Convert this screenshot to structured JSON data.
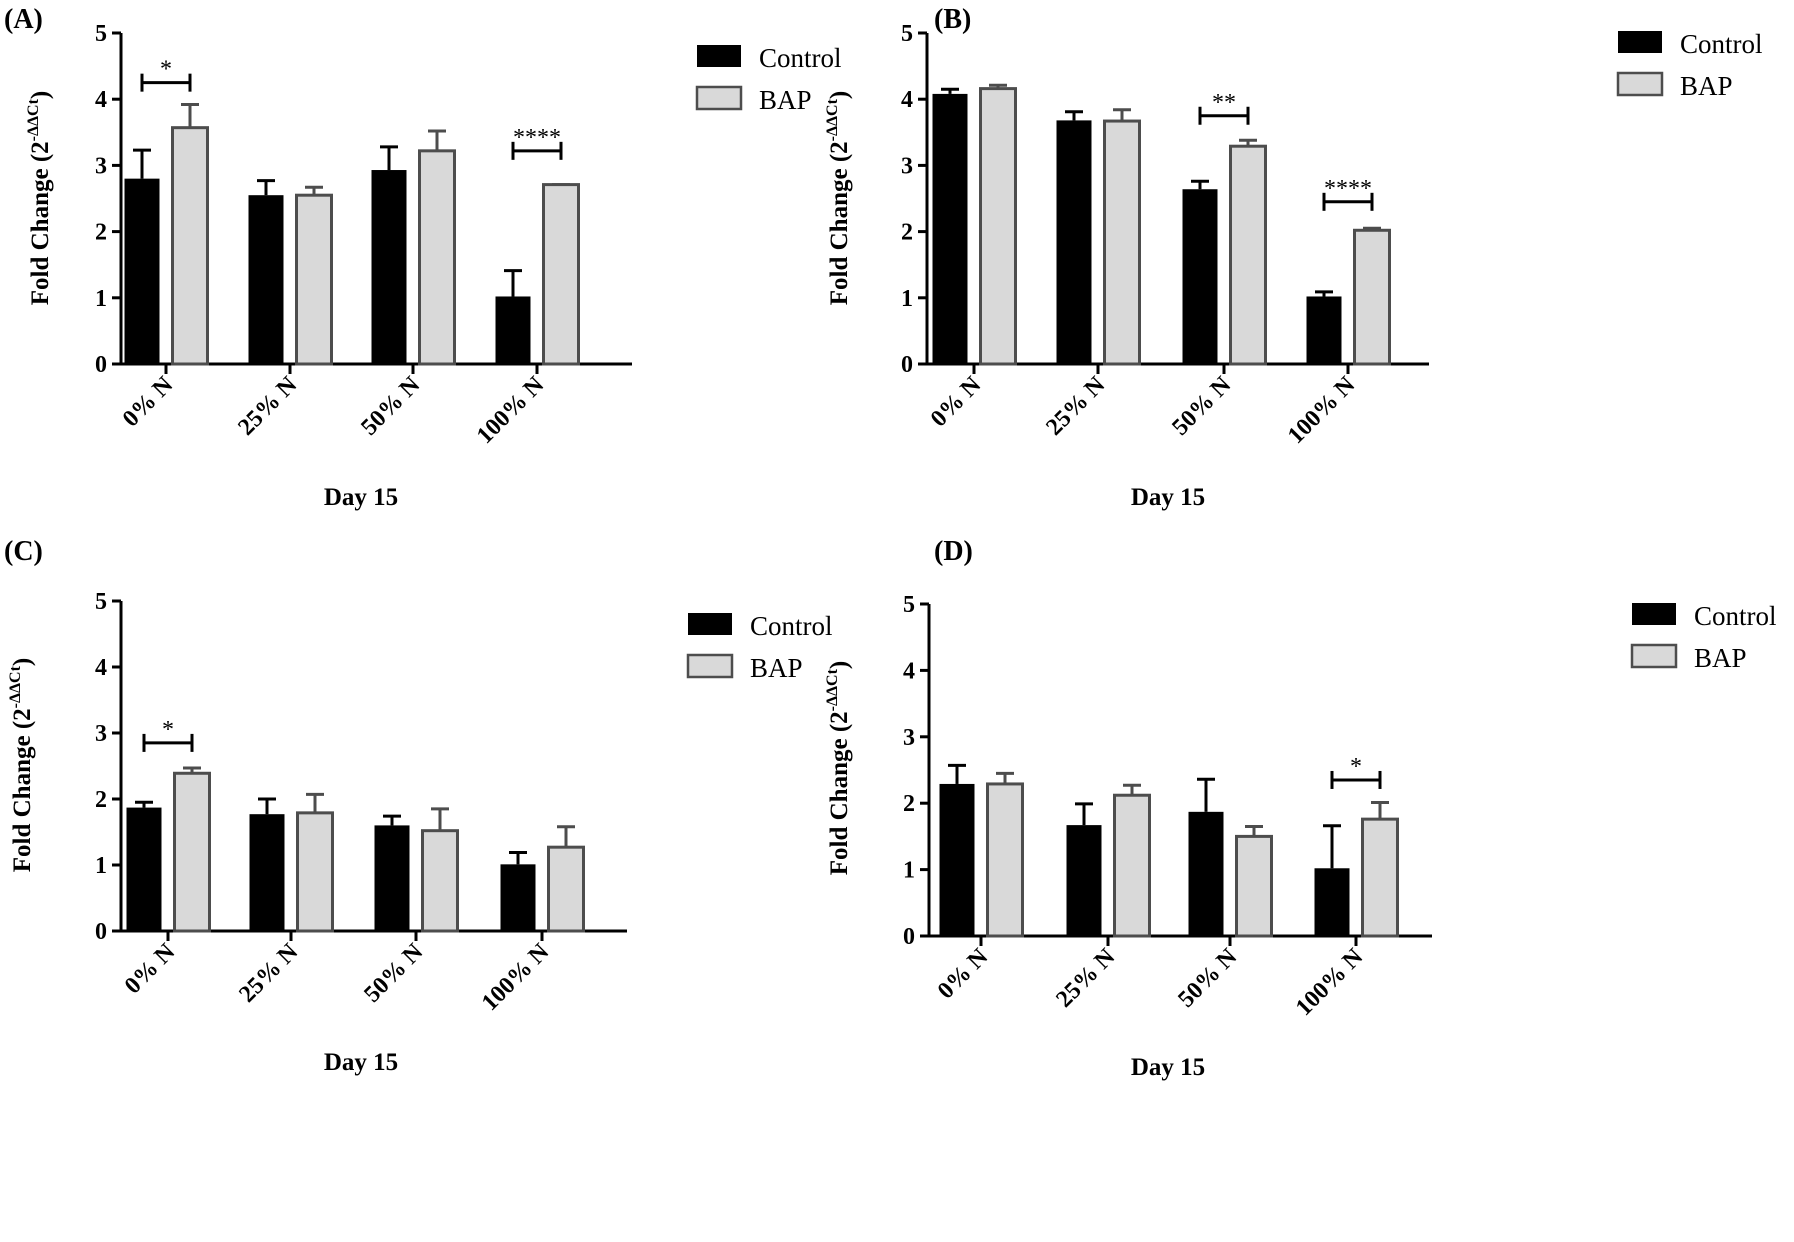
{
  "colors": {
    "control": "#000000",
    "bap": "#d9d9d9",
    "bap_stroke": "#4d4d4d",
    "axis": "#000000"
  },
  "chart_data": [
    {
      "panel_label": "(A)",
      "type": "bar",
      "categories": [
        "0% N",
        "25% N",
        "50% N",
        "100% N"
      ],
      "xlabel": "Day 15",
      "ylabel_main": "Fold Change (2",
      "ylabel_sup": "-ΔΔCt",
      "ylabel_close": ")",
      "ylim": [
        0,
        5
      ],
      "yticks": [
        "0",
        "1",
        "2",
        "3",
        "4",
        "5"
      ],
      "legend": {
        "position": "top-right"
      },
      "series": [
        {
          "name": "Control",
          "values": [
            2.8,
            2.55,
            2.93,
            1.02
          ],
          "errors": [
            0.43,
            0.22,
            0.35,
            0.39
          ]
        },
        {
          "name": "BAP",
          "values": [
            3.57,
            2.55,
            3.22,
            2.71
          ],
          "errors": [
            0.35,
            0.12,
            0.3,
            0.0
          ]
        }
      ],
      "significance": [
        {
          "category": 0,
          "label": "*",
          "y": 4.25
        },
        {
          "category": 3,
          "label": "****",
          "y": 3.22
        }
      ]
    },
    {
      "panel_label": "(B)",
      "type": "bar",
      "categories": [
        "0% N",
        "25% N",
        "50% N",
        "100% N"
      ],
      "xlabel": "Day 15",
      "ylabel_main": "Fold Change (2",
      "ylabel_sup": "-ΔΔCt",
      "ylabel_close": ")",
      "ylim": [
        0,
        5
      ],
      "yticks": [
        "0",
        "1",
        "2",
        "3",
        "4",
        "5"
      ],
      "legend": {
        "position": "top-right"
      },
      "series": [
        {
          "name": "Control",
          "values": [
            4.08,
            3.68,
            2.64,
            1.02
          ],
          "errors": [
            0.07,
            0.13,
            0.12,
            0.07
          ]
        },
        {
          "name": "BAP",
          "values": [
            4.16,
            3.67,
            3.29,
            2.02
          ],
          "errors": [
            0.05,
            0.17,
            0.09,
            0.03
          ]
        }
      ],
      "significance": [
        {
          "category": 2,
          "label": "**",
          "y": 3.75
        },
        {
          "category": 3,
          "label": "****",
          "y": 2.45
        }
      ]
    },
    {
      "panel_label": "(C)",
      "type": "bar",
      "categories": [
        "0% N",
        "25% N",
        "50% N",
        "100% N"
      ],
      "xlabel": "Day 15",
      "ylabel_main": "Fold Change (2",
      "ylabel_sup": "-ΔΔCt",
      "ylabel_close": ")",
      "ylim": [
        0,
        5
      ],
      "yticks": [
        "0",
        "1",
        "2",
        "3",
        "4",
        "5"
      ],
      "legend": {
        "position": "top-right"
      },
      "series": [
        {
          "name": "Control",
          "values": [
            1.87,
            1.77,
            1.6,
            1.01
          ],
          "errors": [
            0.08,
            0.23,
            0.14,
            0.18
          ]
        },
        {
          "name": "BAP",
          "values": [
            2.39,
            1.79,
            1.52,
            1.27
          ],
          "errors": [
            0.08,
            0.28,
            0.33,
            0.31
          ]
        }
      ],
      "significance": [
        {
          "category": 0,
          "label": "*",
          "y": 2.85
        }
      ]
    },
    {
      "panel_label": "(D)",
      "type": "bar",
      "categories": [
        "0% N",
        "25% N",
        "50% N",
        "100% N"
      ],
      "xlabel": "Day 15",
      "ylabel_main": "Fold Change (2",
      "ylabel_sup": "-ΔΔCt",
      "ylabel_close": ")",
      "ylim": [
        0,
        5
      ],
      "yticks": [
        "0",
        "1",
        "2",
        "3",
        "4",
        "5"
      ],
      "legend": {
        "position": "top-right"
      },
      "series": [
        {
          "name": "Control",
          "values": [
            2.29,
            1.67,
            1.87,
            1.02
          ],
          "errors": [
            0.28,
            0.32,
            0.49,
            0.64
          ]
        },
        {
          "name": "BAP",
          "values": [
            2.29,
            2.12,
            1.5,
            1.76
          ],
          "errors": [
            0.16,
            0.15,
            0.15,
            0.25
          ]
        }
      ],
      "significance": [
        {
          "category": 3,
          "label": "*",
          "y": 2.35
        }
      ]
    }
  ]
}
